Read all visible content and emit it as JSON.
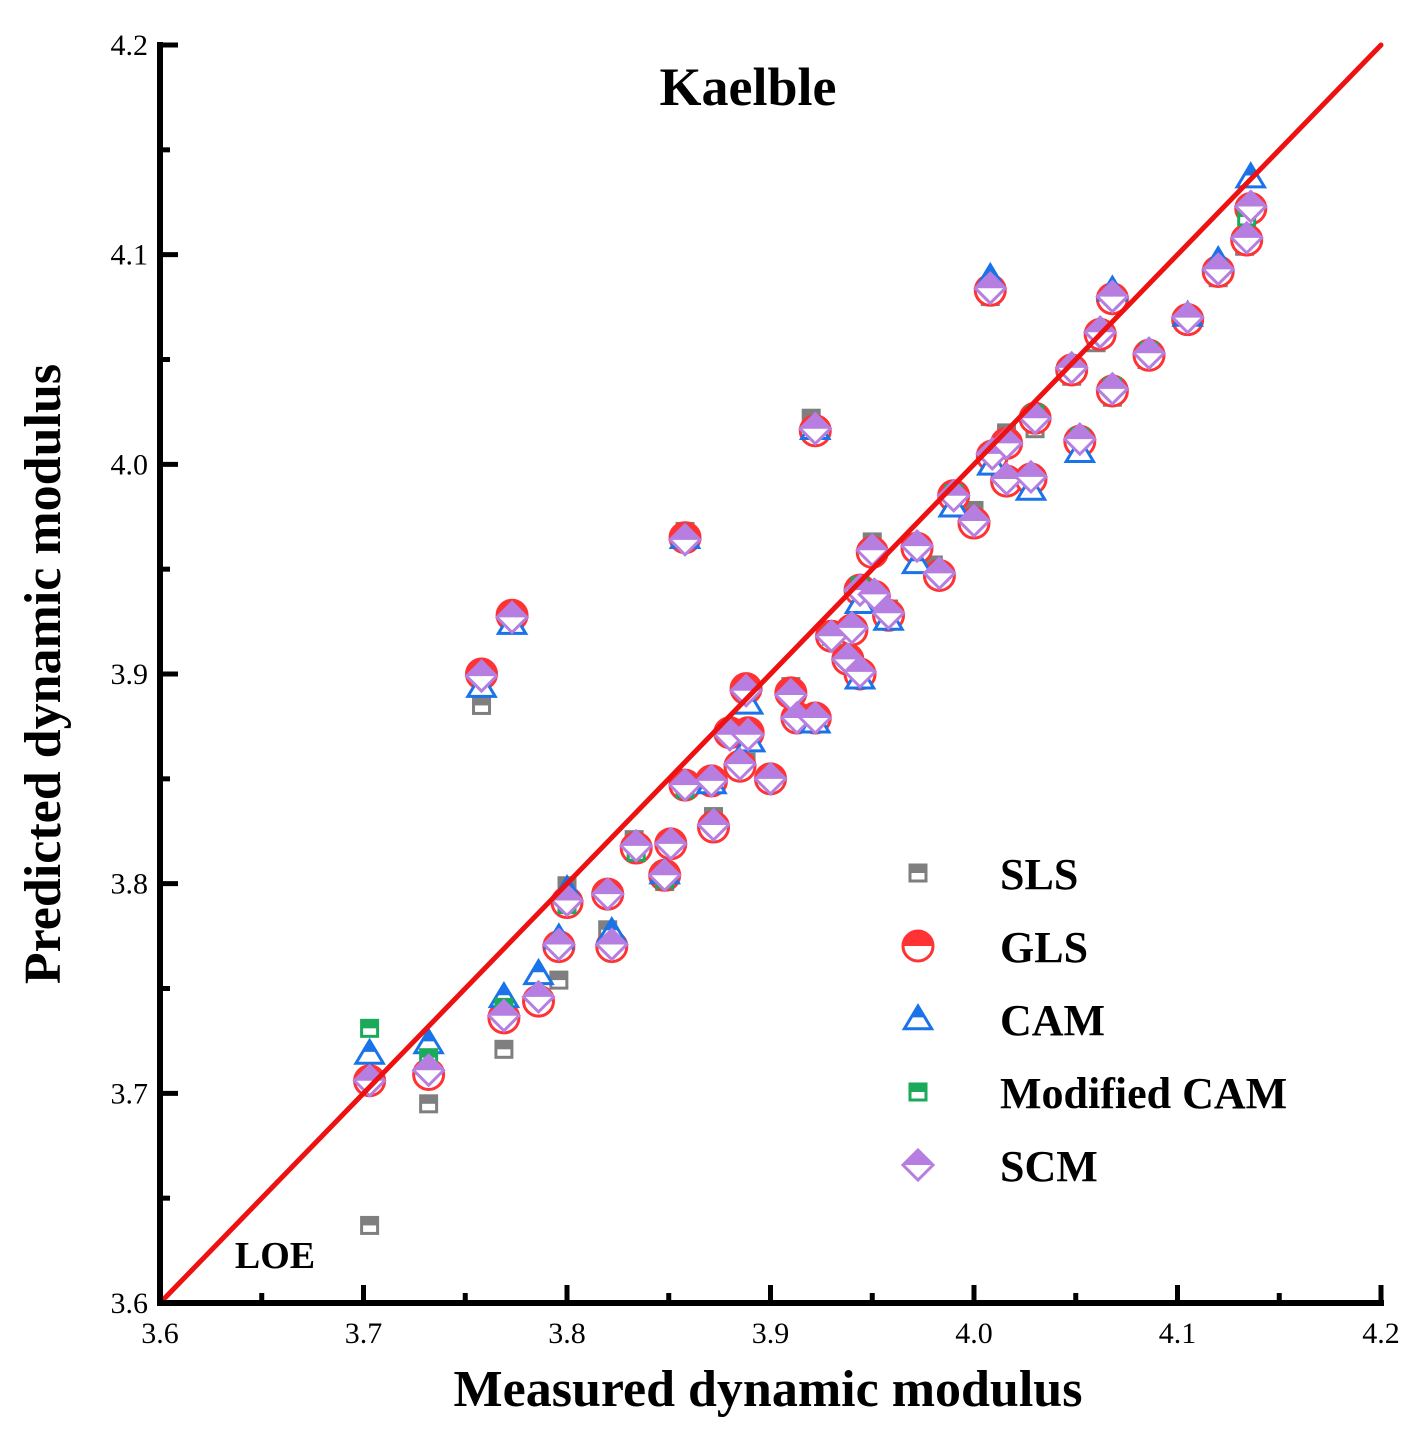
{
  "chart_data": {
    "type": "scatter",
    "title": "Kaelble",
    "xlabel": "Measured dynamic modulus",
    "ylabel": "Predicted dynamic modulus",
    "xlim": [
      3.6,
      4.2
    ],
    "ylim": [
      3.6,
      4.2
    ],
    "x_ticks": [
      "3.6",
      "3.7",
      "3.8",
      "3.9",
      "4.0",
      "4.1",
      "4.2"
    ],
    "y_ticks": [
      "3.6",
      "3.7",
      "3.8",
      "3.9",
      "4.0",
      "4.1",
      "4.2"
    ],
    "reference_line": {
      "label": "LOE",
      "from": [
        3.6,
        3.6
      ],
      "to": [
        4.2,
        4.2
      ],
      "color": "#ee1111"
    },
    "legend_position": "lower-right",
    "series": [
      {
        "name": "SLS",
        "marker": "square-half",
        "color": "#7f7f7f",
        "points": [
          [
            3.703,
            3.637
          ],
          [
            3.732,
            3.695
          ],
          [
            3.758,
            3.885
          ],
          [
            3.769,
            3.721
          ],
          [
            3.773,
            3.928
          ],
          [
            3.796,
            3.754
          ],
          [
            3.8,
            3.799
          ],
          [
            3.82,
            3.778
          ],
          [
            3.833,
            3.821
          ],
          [
            3.848,
            3.801
          ],
          [
            3.858,
            3.968
          ],
          [
            3.872,
            3.832
          ],
          [
            3.888,
            3.858
          ],
          [
            3.91,
            3.894
          ],
          [
            3.92,
            4.022
          ],
          [
            3.95,
            3.963
          ],
          [
            3.958,
            3.931
          ],
          [
            3.98,
            3.952
          ],
          [
            4.0,
            3.978
          ],
          [
            4.008,
            4.08
          ],
          [
            4.016,
            4.015
          ],
          [
            4.03,
            4.017
          ],
          [
            4.048,
            4.042
          ],
          [
            4.06,
            4.058
          ],
          [
            4.068,
            4.032
          ],
          [
            4.085,
            4.05
          ],
          [
            4.105,
            4.067
          ],
          [
            4.12,
            4.089
          ],
          [
            4.133,
            4.104
          ]
        ]
      },
      {
        "name": "GLS",
        "marker": "circle-half",
        "color": "#ff3333",
        "points": [
          [
            3.703,
            3.706
          ],
          [
            3.732,
            3.709
          ],
          [
            3.758,
            3.9
          ],
          [
            3.769,
            3.736
          ],
          [
            3.773,
            3.928
          ],
          [
            3.786,
            3.744
          ],
          [
            3.796,
            3.77
          ],
          [
            3.8,
            3.791
          ],
          [
            3.82,
            3.795
          ],
          [
            3.822,
            3.77
          ],
          [
            3.834,
            3.817
          ],
          [
            3.848,
            3.804
          ],
          [
            3.851,
            3.819
          ],
          [
            3.858,
            3.965
          ],
          [
            3.858,
            3.847
          ],
          [
            3.871,
            3.849
          ],
          [
            3.872,
            3.827
          ],
          [
            3.88,
            3.872
          ],
          [
            3.885,
            3.856
          ],
          [
            3.888,
            3.893
          ],
          [
            3.889,
            3.872
          ],
          [
            3.9,
            3.85
          ],
          [
            3.91,
            3.891
          ],
          [
            3.913,
            3.879
          ],
          [
            3.922,
            3.879
          ],
          [
            3.922,
            4.016
          ],
          [
            3.93,
            3.918
          ],
          [
            3.938,
            3.907
          ],
          [
            3.94,
            3.921
          ],
          [
            3.944,
            3.94
          ],
          [
            3.944,
            3.9
          ],
          [
            3.95,
            3.958
          ],
          [
            3.951,
            3.937
          ],
          [
            3.958,
            3.928
          ],
          [
            3.972,
            3.96
          ],
          [
            3.983,
            3.947
          ],
          [
            3.99,
            3.985
          ],
          [
            4.0,
            3.972
          ],
          [
            4.008,
            4.083
          ],
          [
            4.009,
            4.004
          ],
          [
            4.016,
            3.992
          ],
          [
            4.016,
            4.01
          ],
          [
            4.028,
            3.993
          ],
          [
            4.03,
            4.022
          ],
          [
            4.048,
            4.045
          ],
          [
            4.052,
            4.011
          ],
          [
            4.062,
            4.062
          ],
          [
            4.068,
            4.035
          ],
          [
            4.068,
            4.079
          ],
          [
            4.086,
            4.052
          ],
          [
            4.105,
            4.069
          ],
          [
            4.12,
            4.092
          ],
          [
            4.134,
            4.107
          ],
          [
            4.136,
            4.122
          ]
        ]
      },
      {
        "name": "CAM",
        "marker": "triangle-half",
        "color": "#1a73e8",
        "points": [
          [
            3.703,
            3.719
          ],
          [
            3.732,
            3.724
          ],
          [
            3.758,
            3.894
          ],
          [
            3.769,
            3.746
          ],
          [
            3.773,
            3.924
          ],
          [
            3.786,
            3.757
          ],
          [
            3.796,
            3.774
          ],
          [
            3.8,
            3.797
          ],
          [
            3.822,
            3.777
          ],
          [
            3.848,
            3.805
          ],
          [
            3.858,
            3.965
          ],
          [
            3.871,
            3.848
          ],
          [
            3.889,
            3.886
          ],
          [
            3.89,
            3.868
          ],
          [
            3.922,
            3.877
          ],
          [
            3.922,
            4.017
          ],
          [
            3.944,
            3.934
          ],
          [
            3.944,
            3.898
          ],
          [
            3.958,
            3.926
          ],
          [
            3.972,
            3.953
          ],
          [
            3.99,
            3.98
          ],
          [
            4.008,
            4.089
          ],
          [
            4.009,
            4.0
          ],
          [
            4.028,
            3.988
          ],
          [
            4.052,
            4.006
          ],
          [
            4.068,
            4.083
          ],
          [
            4.105,
            4.071
          ],
          [
            4.12,
            4.097
          ],
          [
            4.136,
            4.137
          ]
        ]
      },
      {
        "name": "Modified CAM",
        "marker": "square-half",
        "color": "#1aaa5a",
        "points": [
          [
            3.703,
            3.731
          ],
          [
            3.732,
            3.717
          ],
          [
            3.769,
            3.741
          ],
          [
            3.8,
            3.79
          ],
          [
            3.834,
            3.815
          ],
          [
            3.848,
            3.802
          ],
          [
            3.858,
            3.845
          ],
          [
            3.93,
            3.918
          ],
          [
            3.944,
            3.942
          ],
          [
            3.99,
            3.986
          ],
          [
            4.03,
            4.024
          ],
          [
            4.052,
            4.013
          ],
          [
            4.068,
            4.037
          ],
          [
            4.086,
            4.054
          ],
          [
            4.134,
            4.118
          ]
        ]
      },
      {
        "name": "SCM",
        "marker": "diamond-half",
        "color": "#b57ee0",
        "points": [
          [
            3.703,
            3.706
          ],
          [
            3.732,
            3.711
          ],
          [
            3.758,
            3.899
          ],
          [
            3.769,
            3.737
          ],
          [
            3.773,
            3.927
          ],
          [
            3.786,
            3.746
          ],
          [
            3.796,
            3.771
          ],
          [
            3.8,
            3.792
          ],
          [
            3.82,
            3.795
          ],
          [
            3.822,
            3.771
          ],
          [
            3.834,
            3.818
          ],
          [
            3.848,
            3.804
          ],
          [
            3.851,
            3.819
          ],
          [
            3.858,
            3.964
          ],
          [
            3.858,
            3.847
          ],
          [
            3.871,
            3.849
          ],
          [
            3.872,
            3.828
          ],
          [
            3.88,
            3.871
          ],
          [
            3.885,
            3.857
          ],
          [
            3.888,
            3.892
          ],
          [
            3.889,
            3.871
          ],
          [
            3.9,
            3.85
          ],
          [
            3.91,
            3.89
          ],
          [
            3.913,
            3.879
          ],
          [
            3.922,
            3.879
          ],
          [
            3.922,
            4.017
          ],
          [
            3.93,
            3.918
          ],
          [
            3.938,
            3.907
          ],
          [
            3.94,
            3.922
          ],
          [
            3.944,
            3.94
          ],
          [
            3.944,
            3.901
          ],
          [
            3.95,
            3.959
          ],
          [
            3.951,
            3.938
          ],
          [
            3.958,
            3.929
          ],
          [
            3.972,
            3.961
          ],
          [
            3.983,
            3.948
          ],
          [
            3.99,
            3.985
          ],
          [
            4.0,
            3.973
          ],
          [
            4.008,
            4.084
          ],
          [
            4.009,
            4.005
          ],
          [
            4.016,
            3.993
          ],
          [
            4.016,
            4.01
          ],
          [
            4.028,
            3.994
          ],
          [
            4.03,
            4.022
          ],
          [
            4.048,
            4.046
          ],
          [
            4.052,
            4.012
          ],
          [
            4.062,
            4.063
          ],
          [
            4.068,
            4.036
          ],
          [
            4.068,
            4.08
          ],
          [
            4.086,
            4.053
          ],
          [
            4.105,
            4.07
          ],
          [
            4.12,
            4.093
          ],
          [
            4.134,
            4.108
          ],
          [
            4.136,
            4.123
          ]
        ]
      }
    ]
  }
}
